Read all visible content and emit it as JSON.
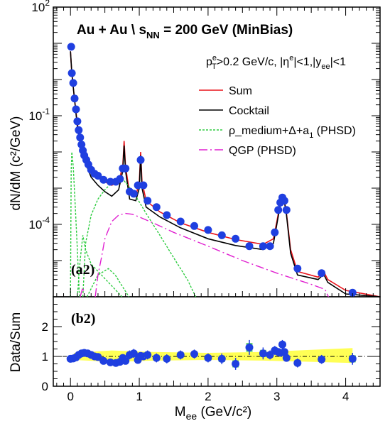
{
  "figure": {
    "title_main": "Au + Au  \\ s",
    "title_sub": "NN",
    "title_tail": " = 200 GeV (MinBias)",
    "cuts_parts": [
      "p",
      "e",
      "T",
      ">0.2 GeV/c, |η",
      "e",
      "|<1,|y",
      "ee",
      "|<1"
    ],
    "top_tag": "(a2)",
    "bottom_tag": "(b2)",
    "colors": {
      "data": "#1f3fe0",
      "sum": "#e8131b",
      "cocktail": "#000000",
      "rho": "#2ecc40",
      "qgp": "#e020d0",
      "band": "#ffff55",
      "syst": "#66dd66"
    }
  },
  "chart_data": [
    {
      "type": "line",
      "panel": "top",
      "xlim": [
        -0.25,
        4.5
      ],
      "ylim_exp": [
        -6,
        2
      ],
      "yscale": "log",
      "ylabel": "dN/dM (c²/GeV)",
      "xtick_labels": [],
      "ytick_labels": [
        {
          "base": "10",
          "exp": "2",
          "value_exp": 2
        },
        {
          "base": "10",
          "exp": "-1",
          "value_exp": -1
        },
        {
          "base": "10",
          "exp": "-4",
          "value_exp": -4
        }
      ],
      "legend": {
        "placement": "top-right",
        "entries": [
          {
            "key": "sum",
            "label": "Sum"
          },
          {
            "key": "cocktail",
            "label": "Cocktail"
          },
          {
            "key": "rho",
            "label": "ρ_medium+Δ+a",
            "sub": "1",
            "tail": " (PHSD)"
          },
          {
            "key": "qgp",
            "label": "QGP (PHSD)"
          }
        ]
      },
      "series": [
        {
          "key": "data",
          "kind": "points",
          "points": [
            [
              0.01,
              8
            ],
            [
              0.02,
              1.5
            ],
            [
              0.04,
              0.8
            ],
            [
              0.06,
              0.3
            ],
            [
              0.08,
              0.15
            ],
            [
              0.1,
              0.07
            ],
            [
              0.12,
              0.04
            ],
            [
              0.14,
              0.025
            ],
            [
              0.16,
              0.016
            ],
            [
              0.18,
              0.011
            ],
            [
              0.2,
              0.008
            ],
            [
              0.23,
              0.006
            ],
            [
              0.26,
              0.0045
            ],
            [
              0.3,
              0.0032
            ],
            [
              0.35,
              0.0025
            ],
            [
              0.4,
              0.0022
            ],
            [
              0.48,
              0.0017
            ],
            [
              0.58,
              0.0015
            ],
            [
              0.66,
              0.0015
            ],
            [
              0.72,
              0.0018
            ],
            [
              0.76,
              0.0035
            ],
            [
              0.8,
              0.0035
            ],
            [
              0.86,
              0.0008
            ],
            [
              0.92,
              0.0007
            ],
            [
              0.98,
              0.0012
            ],
            [
              1.02,
              0.006
            ],
            [
              1.06,
              0.0012
            ],
            [
              1.12,
              0.00045
            ],
            [
              1.25,
              0.0003
            ],
            [
              1.4,
              0.00018
            ],
            [
              1.6,
              0.00012
            ],
            [
              1.8,
              9e-05
            ],
            [
              2.0,
              7e-05
            ],
            [
              2.2,
              5e-05
            ],
            [
              2.4,
              4e-05
            ],
            [
              2.6,
              2.5e-05
            ],
            [
              2.8,
              2.5e-05
            ],
            [
              2.9,
              2.5e-05
            ],
            [
              2.97,
              6e-05
            ],
            [
              3.02,
              0.00025
            ],
            [
              3.05,
              0.0004
            ],
            [
              3.08,
              0.00055
            ],
            [
              3.11,
              0.00045
            ],
            [
              3.14,
              0.00025
            ],
            [
              3.3,
              6e-06
            ],
            [
              3.65,
              4.5e-06
            ],
            [
              4.1,
              1.3e-06
            ]
          ]
        },
        {
          "key": "sum",
          "kind": "line",
          "points": [
            [
              0.0,
              6
            ],
            [
              0.02,
              1.5
            ],
            [
              0.05,
              0.4
            ],
            [
              0.1,
              0.06
            ],
            [
              0.15,
              0.018
            ],
            [
              0.2,
              0.008
            ],
            [
              0.3,
              0.003
            ],
            [
              0.4,
              0.002
            ],
            [
              0.5,
              0.0015
            ],
            [
              0.6,
              0.0012
            ],
            [
              0.7,
              0.0015
            ],
            [
              0.76,
              0.004
            ],
            [
              0.78,
              0.02
            ],
            [
              0.8,
              0.004
            ],
            [
              0.86,
              0.0007
            ],
            [
              0.95,
              0.0006
            ],
            [
              1.0,
              0.0015
            ],
            [
              1.02,
              0.01
            ],
            [
              1.04,
              0.0015
            ],
            [
              1.1,
              0.00045
            ],
            [
              1.3,
              0.00022
            ],
            [
              1.6,
              0.00011
            ],
            [
              2.0,
              6e-05
            ],
            [
              2.4,
              3.8e-05
            ],
            [
              2.8,
              2.8e-05
            ],
            [
              2.95,
              4e-05
            ],
            [
              3.0,
              0.00012
            ],
            [
              3.05,
              0.0004
            ],
            [
              3.1,
              0.0006
            ],
            [
              3.14,
              0.0002
            ],
            [
              3.2,
              2e-05
            ],
            [
              3.3,
              5e-06
            ],
            [
              3.6,
              3.5e-06
            ],
            [
              3.68,
              5e-06
            ],
            [
              3.74,
              3e-06
            ],
            [
              4.0,
              1.5e-06
            ],
            [
              4.5,
              8e-07
            ]
          ]
        },
        {
          "key": "cocktail",
          "kind": "line",
          "points": [
            [
              0.0,
              6
            ],
            [
              0.02,
              1.5
            ],
            [
              0.05,
              0.4
            ],
            [
              0.1,
              0.05
            ],
            [
              0.15,
              0.015
            ],
            [
              0.2,
              0.006
            ],
            [
              0.3,
              0.002
            ],
            [
              0.4,
              0.0012
            ],
            [
              0.5,
              0.0008
            ],
            [
              0.6,
              0.0006
            ],
            [
              0.7,
              0.0009
            ],
            [
              0.76,
              0.003
            ],
            [
              0.78,
              0.015
            ],
            [
              0.8,
              0.003
            ],
            [
              0.86,
              0.0005
            ],
            [
              0.95,
              0.00045
            ],
            [
              1.0,
              0.001
            ],
            [
              1.02,
              0.008
            ],
            [
              1.04,
              0.001
            ],
            [
              1.1,
              0.0003
            ],
            [
              1.3,
              0.00016
            ],
            [
              1.6,
              8e-05
            ],
            [
              2.0,
              4e-05
            ],
            [
              2.4,
              2.6e-05
            ],
            [
              2.8,
              2e-05
            ],
            [
              2.95,
              3e-05
            ],
            [
              3.0,
              0.0001
            ],
            [
              3.05,
              0.00035
            ],
            [
              3.1,
              0.00055
            ],
            [
              3.14,
              0.00018
            ],
            [
              3.2,
              1.6e-05
            ],
            [
              3.3,
              4e-06
            ],
            [
              3.6,
              3e-06
            ],
            [
              3.68,
              4.2e-06
            ],
            [
              3.74,
              2.5e-06
            ],
            [
              4.0,
              1.2e-06
            ],
            [
              4.5,
              7e-07
            ]
          ]
        },
        {
          "key": "rho",
          "kind": "line",
          "segments": [
            [
              [
                0.0,
                1e-06
              ],
              [
                0.01,
                0.003
              ],
              [
                0.02,
                0.01
              ],
              [
                0.04,
                0.004
              ],
              [
                0.07,
                0.0003
              ],
              [
                0.1,
                2e-05
              ],
              [
                0.13,
                1e-06
              ]
            ],
            [
              [
                0.18,
                1e-06
              ],
              [
                0.22,
                3e-05
              ],
              [
                0.3,
                0.00018
              ],
              [
                0.4,
                0.0005
              ],
              [
                0.5,
                0.0009
              ],
              [
                0.6,
                0.0014
              ],
              [
                0.66,
                0.0017
              ],
              [
                0.72,
                0.0018
              ],
              [
                0.78,
                0.0016
              ],
              [
                0.85,
                0.0011
              ],
              [
                0.95,
                0.0006
              ],
              [
                1.1,
                0.0002
              ],
              [
                1.3,
                5e-05
              ],
              [
                1.5,
                1.2e-05
              ],
              [
                1.7,
                3e-06
              ],
              [
                1.82,
                1e-06
              ]
            ],
            [
              [
                0.1,
                1e-06
              ],
              [
                0.14,
                1e-05
              ],
              [
                0.18,
                5e-05
              ],
              [
                0.22,
                2e-05
              ],
              [
                0.3,
                8e-06
              ],
              [
                0.45,
                4e-06
              ],
              [
                0.6,
                2e-06
              ],
              [
                0.75,
                1e-06
              ]
            ],
            [
              [
                0.24,
                1e-06
              ],
              [
                0.4,
                4e-06
              ],
              [
                0.55,
                6e-06
              ],
              [
                0.65,
                4e-06
              ],
              [
                0.75,
                2e-06
              ],
              [
                0.85,
                1e-06
              ]
            ]
          ]
        },
        {
          "key": "qgp",
          "kind": "line",
          "segments": [
            [
              [
                0.14,
                1e-06
              ],
              [
                0.18,
                1.8e-06
              ],
              [
                0.2,
                1.2e-06
              ]
            ],
            [
              [
                0.36,
                1e-06
              ],
              [
                0.4,
                4e-06
              ],
              [
                0.45,
                1.2e-05
              ],
              [
                0.5,
                4e-05
              ],
              [
                0.6,
                0.00012
              ],
              [
                0.7,
                0.00018
              ],
              [
                0.8,
                0.0002
              ],
              [
                0.9,
                0.00019
              ],
              [
                1.0,
                0.00016
              ],
              [
                1.2,
                0.00011
              ],
              [
                1.5,
                6e-05
              ],
              [
                2.0,
                2.5e-05
              ],
              [
                2.5,
                1e-05
              ],
              [
                3.0,
                4.5e-06
              ],
              [
                3.5,
                2.2e-06
              ],
              [
                3.7,
                1.6e-06
              ],
              [
                3.75,
                1e-06
              ]
            ]
          ]
        }
      ]
    },
    {
      "type": "scatter",
      "panel": "bottom",
      "xlim": [
        -0.25,
        4.5
      ],
      "ylim": [
        0,
        3.0
      ],
      "xlabel": "M",
      "xlabel_sub": "ee",
      "xlabel_tail": " (GeV/c²)",
      "ylabel": "Data/Sum",
      "xtick_labels": [
        "0",
        "1",
        "2",
        "3",
        "4"
      ],
      "ytick_labels": [
        "0",
        "1",
        "2"
      ],
      "reference_line": 1,
      "band": {
        "upper": [
          [
            0.05,
            1.12
          ],
          [
            0.6,
            1.2
          ],
          [
            1.2,
            1.15
          ],
          [
            2.0,
            1.12
          ],
          [
            2.8,
            1.15
          ],
          [
            3.5,
            1.22
          ],
          [
            4.1,
            1.28
          ]
        ],
        "lower": [
          [
            0.05,
            0.88
          ],
          [
            0.6,
            0.82
          ],
          [
            1.2,
            0.86
          ],
          [
            2.0,
            0.88
          ],
          [
            2.8,
            0.86
          ],
          [
            3.5,
            0.82
          ],
          [
            4.1,
            0.78
          ]
        ]
      },
      "points": [
        [
          0.0,
          0.92,
          0.1
        ],
        [
          0.04,
          0.93,
          0.1
        ],
        [
          0.08,
          0.97,
          0.1
        ],
        [
          0.12,
          1.05,
          0.12
        ],
        [
          0.16,
          1.1,
          0.12
        ],
        [
          0.2,
          1.12,
          0.12
        ],
        [
          0.25,
          1.1,
          0.12
        ],
        [
          0.3,
          1.05,
          0.12
        ],
        [
          0.35,
          1.0,
          0.12
        ],
        [
          0.4,
          0.98,
          0.12
        ],
        [
          0.48,
          0.85,
          0.12
        ],
        [
          0.58,
          0.8,
          0.12
        ],
        [
          0.66,
          0.78,
          0.12
        ],
        [
          0.72,
          0.82,
          0.12
        ],
        [
          0.76,
          0.95,
          0.12
        ],
        [
          0.8,
          0.85,
          0.12
        ],
        [
          0.86,
          1.05,
          0.15
        ],
        [
          0.92,
          1.1,
          0.15
        ],
        [
          0.98,
          0.88,
          0.12
        ],
        [
          1.02,
          1.02,
          0.12
        ],
        [
          1.06,
          1.0,
          0.12
        ],
        [
          1.12,
          1.05,
          0.15
        ],
        [
          1.25,
          0.95,
          0.15
        ],
        [
          1.4,
          0.92,
          0.15
        ],
        [
          1.6,
          1.05,
          0.15
        ],
        [
          1.8,
          1.08,
          0.15
        ],
        [
          2.0,
          0.95,
          0.15
        ],
        [
          2.2,
          0.92,
          0.18
        ],
        [
          2.4,
          0.75,
          0.2
        ],
        [
          2.6,
          1.3,
          0.25
        ],
        [
          2.8,
          1.1,
          0.2
        ],
        [
          2.9,
          1.05,
          0.15
        ],
        [
          2.97,
          1.2,
          0.15
        ],
        [
          3.02,
          1.15,
          0.12
        ],
        [
          3.05,
          1.12,
          0.12
        ],
        [
          3.08,
          1.4,
          0.15
        ],
        [
          3.11,
          1.15,
          0.12
        ],
        [
          3.14,
          0.95,
          0.12
        ],
        [
          3.3,
          0.78,
          0.15
        ],
        [
          3.65,
          0.9,
          0.15
        ],
        [
          4.1,
          0.92,
          0.2
        ]
      ]
    }
  ]
}
